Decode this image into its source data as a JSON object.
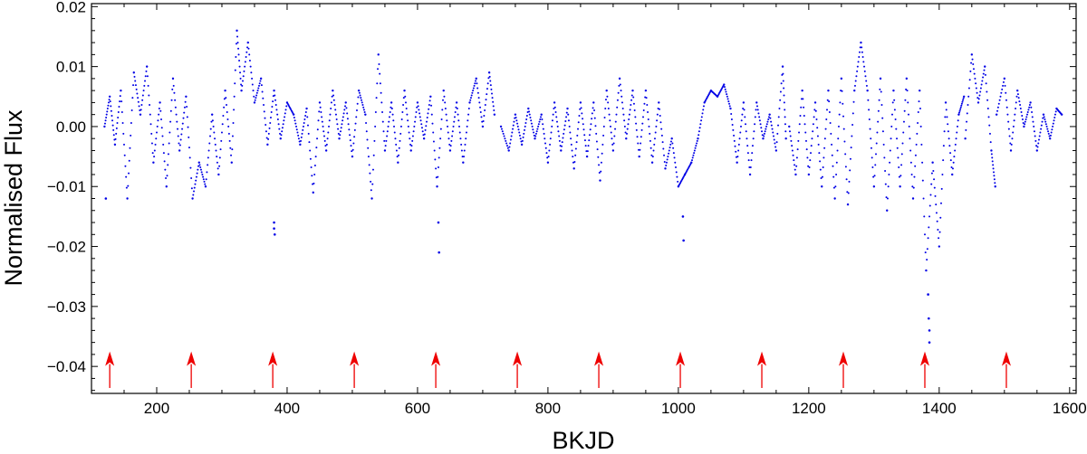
{
  "chart_data": {
    "type": "scatter",
    "title": "",
    "xlabel": "BKJD",
    "ylabel": "Normalised Flux",
    "xlim": [
      100,
      1610
    ],
    "ylim": [
      -0.0445,
      0.0205
    ],
    "xticks": [
      200,
      400,
      600,
      800,
      1000,
      1200,
      1400,
      1600
    ],
    "xtick_labels": [
      "200",
      "400",
      "600",
      "800",
      "1000",
      "1200",
      "1400",
      "1600"
    ],
    "yticks": [
      0.02,
      0.01,
      0.0,
      -0.01,
      -0.02,
      -0.03,
      -0.04
    ],
    "ytick_labels": [
      "0.02",
      "0.01",
      "0.00",
      "−0.01",
      "−0.02",
      "−0.03",
      "−0.04"
    ],
    "grid": false,
    "legend": "none",
    "series": [
      {
        "color": "#0000e6",
        "marker": "dot",
        "gaps": [
          [
            718,
            728
          ],
          [
            1165,
            1170
          ],
          [
            1438,
            1440
          ],
          [
            1486,
            1488
          ]
        ],
        "x": [
          120,
          128,
          136,
          145,
          155,
          165,
          175,
          185,
          195,
          205,
          215,
          225,
          235,
          245,
          255,
          265,
          275,
          285,
          295,
          305,
          315,
          323,
          330,
          340,
          350,
          360,
          370,
          380,
          390,
          400,
          410,
          420,
          430,
          440,
          450,
          460,
          470,
          480,
          490,
          500,
          510,
          520,
          530,
          540,
          550,
          560,
          570,
          580,
          590,
          600,
          610,
          620,
          630,
          640,
          650,
          660,
          670,
          680,
          690,
          700,
          710,
          718,
          728,
          740,
          750,
          760,
          770,
          780,
          790,
          800,
          810,
          820,
          830,
          840,
          850,
          860,
          870,
          880,
          890,
          900,
          910,
          920,
          930,
          940,
          950,
          960,
          970,
          980,
          990,
          1000,
          1010,
          1020,
          1030,
          1040,
          1050,
          1060,
          1070,
          1080,
          1090,
          1100,
          1110,
          1120,
          1130,
          1140,
          1150,
          1160,
          1165,
          1170,
          1180,
          1190,
          1200,
          1210,
          1220,
          1230,
          1240,
          1250,
          1260,
          1270,
          1280,
          1290,
          1300,
          1310,
          1320,
          1330,
          1340,
          1350,
          1360,
          1370,
          1380,
          1390,
          1400,
          1410,
          1420,
          1430,
          1438,
          1440,
          1450,
          1460,
          1470,
          1480,
          1486,
          1488,
          1500,
          1510,
          1520,
          1530,
          1540,
          1550,
          1560,
          1570,
          1580,
          1588
        ],
        "y": [
          0.0,
          0.005,
          -0.003,
          0.006,
          -0.012,
          0.009,
          0.002,
          0.01,
          -0.006,
          0.004,
          -0.01,
          0.008,
          -0.004,
          0.005,
          -0.012,
          -0.006,
          -0.01,
          0.002,
          -0.008,
          0.006,
          -0.006,
          0.016,
          0.006,
          0.014,
          0.004,
          0.008,
          -0.003,
          0.006,
          -0.002,
          0.004,
          0.002,
          -0.003,
          0.003,
          -0.011,
          0.004,
          -0.004,
          0.006,
          -0.002,
          0.004,
          -0.005,
          0.006,
          0.002,
          -0.012,
          0.012,
          -0.004,
          0.004,
          -0.006,
          0.006,
          -0.004,
          0.004,
          -0.002,
          0.005,
          -0.01,
          0.006,
          -0.004,
          0.004,
          -0.006,
          0.004,
          0.008,
          0.0,
          0.009,
          0.002,
          0.0,
          -0.004,
          0.002,
          -0.003,
          0.003,
          -0.002,
          0.002,
          -0.006,
          0.004,
          -0.004,
          0.003,
          -0.007,
          0.004,
          -0.005,
          0.004,
          -0.009,
          0.006,
          -0.004,
          0.008,
          -0.002,
          0.006,
          -0.005,
          0.006,
          -0.006,
          0.004,
          -0.007,
          -0.002,
          -0.01,
          -0.008,
          -0.006,
          -0.002,
          0.004,
          0.006,
          0.005,
          0.007,
          0.003,
          -0.006,
          0.004,
          -0.008,
          0.004,
          -0.002,
          0.002,
          -0.004,
          0.01,
          -0.002,
          0.0,
          -0.008,
          0.006,
          -0.008,
          0.004,
          -0.01,
          0.006,
          -0.012,
          0.008,
          -0.013,
          0.006,
          0.014,
          0.006,
          -0.01,
          0.008,
          -0.014,
          0.006,
          -0.01,
          0.008,
          -0.012,
          0.006,
          -0.024,
          -0.006,
          -0.02,
          0.004,
          -0.008,
          0.002,
          0.005,
          -0.002,
          0.012,
          0.004,
          0.01,
          -0.004,
          -0.01,
          0.002,
          0.008,
          -0.004,
          0.006,
          0.0,
          0.004,
          -0.004,
          0.002,
          -0.002,
          0.003,
          0.002
        ]
      },
      {
        "name": "",
        "color": "#0000e6",
        "marker": "dot",
        "x": [
          122,
          380,
          380,
          381,
          632,
          633,
          1007,
          1008,
          1383,
          1384,
          1385,
          1385
        ],
        "y": [
          -0.012,
          -0.016,
          -0.017,
          -0.018,
          -0.016,
          -0.021,
          -0.015,
          -0.019,
          -0.028,
          -0.032,
          -0.034,
          -0.036
        ]
      }
    ],
    "annotations": {
      "type": "arrows",
      "color": "#ee0000",
      "x": [
        128,
        253,
        378,
        503,
        628,
        753,
        878,
        1003,
        1128,
        1253,
        1378,
        1503
      ],
      "y_tip": -0.0375,
      "y_base": -0.0445
    }
  }
}
